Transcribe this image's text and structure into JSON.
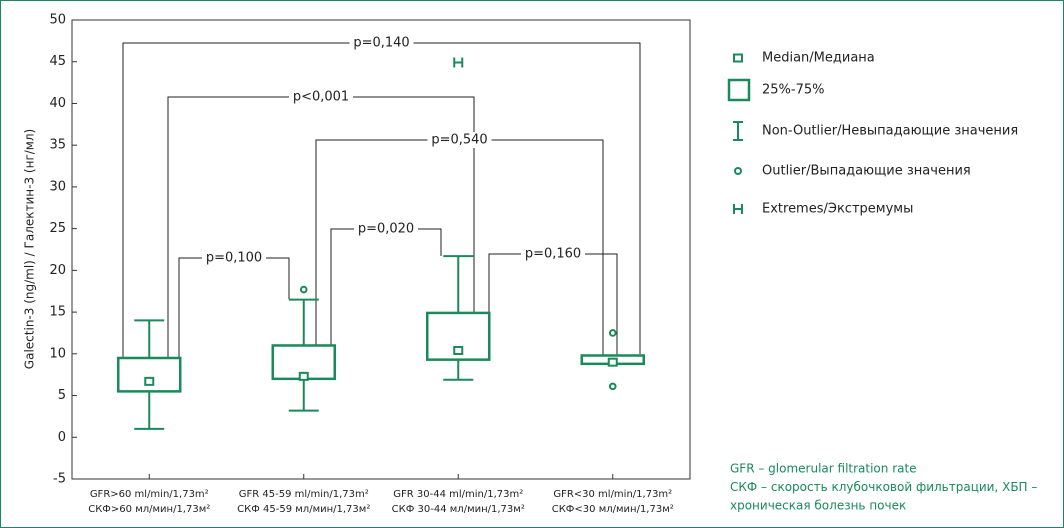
{
  "chart_data": {
    "type": "box",
    "y_label": "Galectin-3 (ng/ml) / Галектин-3 (нг/мл)",
    "categories": [
      [
        "GFR>60 ml/min/1,73m²",
        "СКФ>60 мл/мин/1,73м²"
      ],
      [
        "GFR 45-59 ml/min/1,73m²",
        "СКФ 45-59 мл/мин/1,73м²"
      ],
      [
        "GFR 30-44 ml/min/1,73m²",
        "СКФ 30-44 мл/мин/1,73м²"
      ],
      [
        "GFR<30 ml/min/1,73m²",
        "СКФ<30 мл/мин/1,73м²"
      ]
    ],
    "median": [
      6.7,
      7.3,
      10.4,
      9
    ],
    "q1": [
      5.5,
      7,
      9.3,
      8.8
    ],
    "q3": [
      9.5,
      11,
      14.9,
      9.8
    ],
    "whisker_low": [
      1,
      3.2,
      6.9,
      null
    ],
    "whisker_high": [
      14,
      16.5,
      21.7,
      null
    ],
    "outliers": [
      [],
      [
        17.7
      ],
      [],
      [
        12.5,
        6.1
      ]
    ],
    "extremes": [
      [],
      [],
      [
        44.9
      ],
      []
    ],
    "color": "#1a8a5a",
    "ylim": [
      -5,
      50
    ],
    "yticks": [
      -5,
      0,
      5,
      10,
      15,
      20,
      25,
      30,
      35,
      40,
      45,
      50
    ],
    "annotations": [
      {
        "text": "p=0,140",
        "from": 0,
        "to": 3
      },
      {
        "text": "p<0,001",
        "from": 0,
        "to": 2
      },
      {
        "text": "p=0,540",
        "from": 1,
        "to": 3
      },
      {
        "text": "p=0,020",
        "from": 1,
        "to": 2
      },
      {
        "text": "p=0,100",
        "from": 0,
        "to": 1
      },
      {
        "text": "p=0,160",
        "from": 2,
        "to": 3
      }
    ],
    "legend": [
      "Median/Медиана",
      "25%-75%",
      "Non-Outlier/Невыпадающие значения",
      "Outlier/Выпадающие значения",
      "Extremes/Экстремумы"
    ],
    "footnote": [
      "GFR – glomerular filtration rate",
      "СКФ – скорость клубочковой фильтрации, ХБП –",
      "хроническая болезнь почек"
    ]
  }
}
